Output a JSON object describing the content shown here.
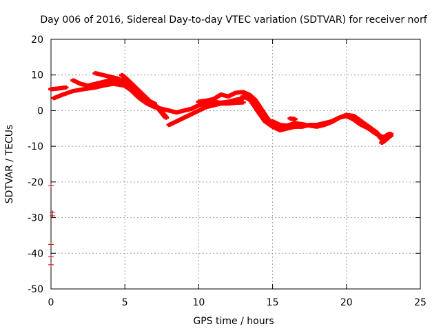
{
  "chart_data": {
    "type": "scatter",
    "title": "Day 006 of 2016, Sidereal Day-to-day VTEC variation (SDTVAR) for receiver norf",
    "xlabel": "GPS time / hours",
    "ylabel": "SDTVAR / TECUs",
    "xlim": [
      0,
      25
    ],
    "ylim": [
      -50,
      20
    ],
    "xticks": [
      0,
      5,
      10,
      15,
      20,
      25
    ],
    "yticks": [
      -50,
      -40,
      -30,
      -20,
      -10,
      0,
      10,
      20
    ],
    "grid": true,
    "series": [
      {
        "name": "SDTVAR",
        "color": "#ff0000",
        "marker": "+",
        "tracks": [
          [
            [
              0.0,
              6.0
            ],
            [
              0.5,
              6.2
            ],
            [
              1.0,
              6.5
            ]
          ],
          [
            [
              0.2,
              3.5
            ],
            [
              0.8,
              4.5
            ],
            [
              1.5,
              5.5
            ],
            [
              2.2,
              6.0
            ],
            [
              3.0,
              6.5
            ],
            [
              3.5,
              7.0
            ],
            [
              4.2,
              7.5
            ],
            [
              5.0,
              7.0
            ],
            [
              5.5,
              5.5
            ],
            [
              6.0,
              3.5
            ],
            [
              6.5,
              2.0
            ],
            [
              7.0,
              1.0
            ],
            [
              7.5,
              0.5
            ],
            [
              8.0,
              0.0
            ],
            [
              8.5,
              -0.5
            ],
            [
              9.0,
              0.0
            ],
            [
              9.5,
              0.5
            ],
            [
              10.0,
              1.5
            ],
            [
              10.5,
              2.0
            ],
            [
              11.0,
              2.5
            ],
            [
              11.5,
              2.2
            ],
            [
              12.0,
              2.5
            ],
            [
              12.5,
              3.0
            ],
            [
              13.0,
              3.5
            ]
          ],
          [
            [
              1.5,
              8.5
            ],
            [
              2.0,
              7.5
            ],
            [
              2.5,
              7.0
            ],
            [
              3.0,
              7.5
            ],
            [
              3.5,
              8.0
            ],
            [
              4.0,
              8.5
            ],
            [
              4.5,
              8.0
            ],
            [
              5.0,
              7.5
            ]
          ],
          [
            [
              3.0,
              10.5
            ],
            [
              3.5,
              10.0
            ],
            [
              4.0,
              9.5
            ],
            [
              4.5,
              9.0
            ],
            [
              5.0,
              8.0
            ],
            [
              5.5,
              6.5
            ],
            [
              6.0,
              4.5
            ],
            [
              6.5,
              3.0
            ],
            [
              7.0,
              2.0
            ]
          ],
          [
            [
              4.8,
              10.0
            ],
            [
              5.2,
              8.5
            ],
            [
              5.7,
              6.5
            ],
            [
              6.2,
              4.5
            ],
            [
              6.7,
              2.5
            ],
            [
              7.2,
              1.0
            ],
            [
              7.6,
              -1.0
            ],
            [
              7.8,
              -2.0
            ]
          ],
          [
            [
              8.0,
              -4.0
            ],
            [
              8.5,
              -3.0
            ],
            [
              9.0,
              -2.0
            ],
            [
              9.5,
              -1.0
            ],
            [
              10.0,
              0.0
            ],
            [
              10.5,
              1.0
            ],
            [
              11.0,
              1.5
            ],
            [
              11.5,
              2.0
            ],
            [
              12.0,
              2.0
            ],
            [
              12.5,
              2.2
            ],
            [
              13.0,
              2.3
            ]
          ],
          [
            [
              10.0,
              2.5
            ],
            [
              10.5,
              2.8
            ],
            [
              11.0,
              3.2
            ],
            [
              11.5,
              4.5
            ],
            [
              12.0,
              4.0
            ],
            [
              12.5,
              5.0
            ],
            [
              13.0,
              5.2
            ],
            [
              13.4,
              4.5
            ],
            [
              13.8,
              3.0
            ],
            [
              14.2,
              0.5
            ],
            [
              14.6,
              -2.0
            ],
            [
              15.0,
              -4.0
            ],
            [
              15.4,
              -5.0
            ],
            [
              15.8,
              -5.2
            ]
          ],
          [
            [
              13.0,
              4.0
            ],
            [
              13.5,
              3.0
            ],
            [
              14.0,
              0.0
            ],
            [
              14.5,
              -3.0
            ],
            [
              15.0,
              -4.5
            ],
            [
              15.5,
              -5.5
            ],
            [
              16.0,
              -5.0
            ],
            [
              16.5,
              -4.5
            ],
            [
              17.0,
              -4.5
            ],
            [
              17.5,
              -4.0
            ],
            [
              18.0,
              -4.0
            ],
            [
              18.5,
              -3.5
            ],
            [
              19.0,
              -3.0
            ],
            [
              19.5,
              -2.0
            ],
            [
              20.0,
              -1.5
            ],
            [
              20.5,
              -2.5
            ],
            [
              21.0,
              -4.0
            ],
            [
              21.5,
              -5.0
            ],
            [
              22.0,
              -6.5
            ],
            [
              22.5,
              -7.5
            ],
            [
              22.9,
              -6.5
            ]
          ],
          [
            [
              15.0,
              -3.0
            ],
            [
              15.5,
              -4.0
            ],
            [
              16.0,
              -4.2
            ],
            [
              16.5,
              -3.5
            ],
            [
              17.0,
              -3.8
            ],
            [
              17.5,
              -4.2
            ],
            [
              18.0,
              -4.5
            ],
            [
              18.5,
              -4.0
            ],
            [
              19.0,
              -3.2
            ],
            [
              19.5,
              -2.0
            ],
            [
              20.0,
              -1.2
            ],
            [
              20.5,
              -1.5
            ],
            [
              21.0,
              -3.0
            ],
            [
              21.5,
              -4.5
            ],
            [
              22.0,
              -6.0
            ],
            [
              22.5,
              -8.5
            ],
            [
              23.0,
              -7.0
            ]
          ],
          [
            [
              16.2,
              -2.2
            ],
            [
              16.5,
              -2.4
            ]
          ],
          [
            [
              22.4,
              -9.0
            ],
            [
              22.7,
              -8.0
            ],
            [
              23.0,
              -6.5
            ]
          ]
        ],
        "isolated": [
          [
            0.0,
            -21.0
          ],
          [
            0.1,
            -28.5
          ],
          [
            0.1,
            -29.5
          ],
          [
            0.0,
            -37.5
          ],
          [
            0.0,
            -41.0
          ],
          [
            0.0,
            -43.2
          ]
        ]
      }
    ]
  }
}
